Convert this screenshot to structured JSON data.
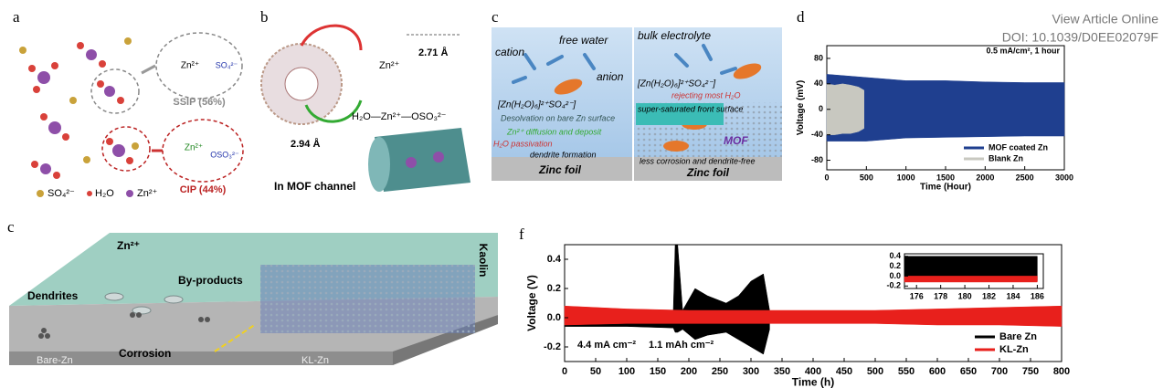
{
  "header": {
    "link": "View Article Online",
    "doi": "DOI: 10.1039/D0EE02079F"
  },
  "panel_a": {
    "label": "a",
    "ssip": "SSIP (56%)",
    "cip": "CIP (44%)",
    "ssip_anion": "SO₄²⁻",
    "cip_anion": "OSO₃²⁻",
    "zinc": "Zn²⁺",
    "legend": [
      "SO₄²⁻",
      "H₂O",
      "Zn²⁺"
    ]
  },
  "panel_b": {
    "label": "b",
    "distance_1": "2.71 Å",
    "distance_2": "2.94 Å",
    "complex": "H₂O—Zn²⁺—OSO₃²⁻",
    "caption": "In MOF channel"
  },
  "panel_c_top": {
    "label": "c",
    "cation": "cation",
    "free_water": "free water",
    "anion": "anion",
    "bulk": "bulk electrolyte",
    "complex_left": "[Zn(H₂O)₆]²⁺SO₄²⁻]",
    "complex_right": "[Zn(H₂O)₆]²⁺SO₄²⁻]",
    "desolvation": "Desolvation on bare Zn surface",
    "diffusion": "Zn²⁺ diffusion and deposit",
    "passivation": "H₂O passivation",
    "dendrite": "dendrite formation",
    "foil_left": "Zinc foil",
    "rejecting": "rejecting most H₂O",
    "saturated": "super-saturated front surface",
    "mof": "MOF",
    "less": "less corrosion and dendrite-free",
    "foil_right": "Zinc foil"
  },
  "panel_c_bottom": {
    "label": "c",
    "zinc": "Zn²⁺",
    "dendrites": "Dendrites",
    "byproducts": "By-products",
    "corrosion": "Corrosion",
    "bare": "Bare-Zn",
    "kl": "KL-Zn",
    "kaolin": "Kaolin"
  },
  "chart_data": [
    {
      "type": "band",
      "panel_label": "d",
      "annotation": "0.5 mA/cm², 1 hour",
      "x_label": "Time (Hour)",
      "y_label": "Voltage (mV)",
      "xlim": [
        0,
        3000
      ],
      "xticks": [
        0,
        500,
        1000,
        1500,
        2000,
        2500,
        3000
      ],
      "ylim": [
        -95,
        100
      ],
      "yticks": [
        -80,
        -40,
        0,
        40,
        80
      ],
      "legend": "lower right",
      "series": [
        {
          "name": "MOF coated Zn",
          "color": "#1f3f8f",
          "x": [
            0,
            500,
            1000,
            1500,
            2000,
            2500,
            3000
          ],
          "upper": [
            55,
            50,
            45,
            45,
            43,
            42,
            42
          ],
          "lower": [
            -50,
            -50,
            -45,
            -44,
            -43,
            -42,
            -42
          ]
        },
        {
          "name": "Blank Zn",
          "color": "#c8c8c0",
          "x": [
            0,
            100,
            200,
            300,
            400,
            470
          ],
          "upper": [
            40,
            38,
            40,
            38,
            35,
            30
          ],
          "lower": [
            -40,
            -40,
            -38,
            -38,
            -35,
            -30
          ]
        }
      ]
    },
    {
      "type": "band",
      "panel_label": "f",
      "annotation": "4.4 mA cm⁻²",
      "annotation_2": "1.1 mAh cm⁻²",
      "x_label": "Time (h)",
      "y_label": "Voltage (V)",
      "xlim": [
        0,
        800
      ],
      "xticks": [
        0,
        50,
        100,
        150,
        200,
        250,
        300,
        350,
        400,
        450,
        500,
        550,
        600,
        650,
        700,
        750,
        800
      ],
      "ylim": [
        -0.3,
        0.5
      ],
      "yticks": [
        -0.2,
        {
          "value": 0,
          "label": "0.0"
        },
        0.2,
        0.4
      ],
      "legend": "lower right",
      "series": [
        {
          "name": "Bare Zn",
          "color": "#000000",
          "x": [
            0,
            100,
            175,
            178,
            182,
            190,
            210,
            230,
            260,
            280,
            300,
            320,
            330
          ],
          "upper": [
            0.06,
            0.05,
            0.05,
            0.5,
            0.5,
            0.05,
            0.2,
            0.15,
            0.1,
            0.15,
            0.25,
            0.3,
            0.05
          ],
          "lower": [
            -0.06,
            -0.06,
            -0.07,
            -0.1,
            -0.1,
            -0.08,
            -0.15,
            -0.12,
            -0.1,
            -0.15,
            -0.2,
            -0.25,
            -0.08
          ]
        },
        {
          "name": "KL-Zn",
          "color": "#e8201c",
          "x": [
            0,
            100,
            200,
            300,
            400,
            500,
            600,
            700,
            800
          ],
          "upper": [
            0.08,
            0.06,
            0.05,
            0.05,
            0.05,
            0.05,
            0.06,
            0.07,
            0.08
          ],
          "lower": [
            -0.05,
            -0.04,
            -0.04,
            -0.04,
            -0.04,
            -0.04,
            -0.05,
            -0.05,
            -0.06
          ]
        }
      ]
    },
    {
      "type": "band",
      "xlim": [
        175,
        186.5
      ],
      "xticks": [
        176,
        178,
        180,
        182,
        184,
        186
      ],
      "ylim": [
        -0.25,
        0.45
      ],
      "yticks": [
        -0.2,
        {
          "value": 0,
          "label": "0.0"
        },
        0.2,
        0.4
      ],
      "series": [
        {
          "color": "#000000",
          "x": [
            175,
            186
          ],
          "upper": [
            0.4,
            0.4
          ],
          "lower": [
            -0.1,
            -0.1
          ]
        },
        {
          "color": "#e8201c",
          "x": [
            175,
            186
          ],
          "upper": [
            0.0,
            0.0
          ],
          "lower": [
            -0.12,
            -0.12
          ]
        }
      ]
    }
  ]
}
